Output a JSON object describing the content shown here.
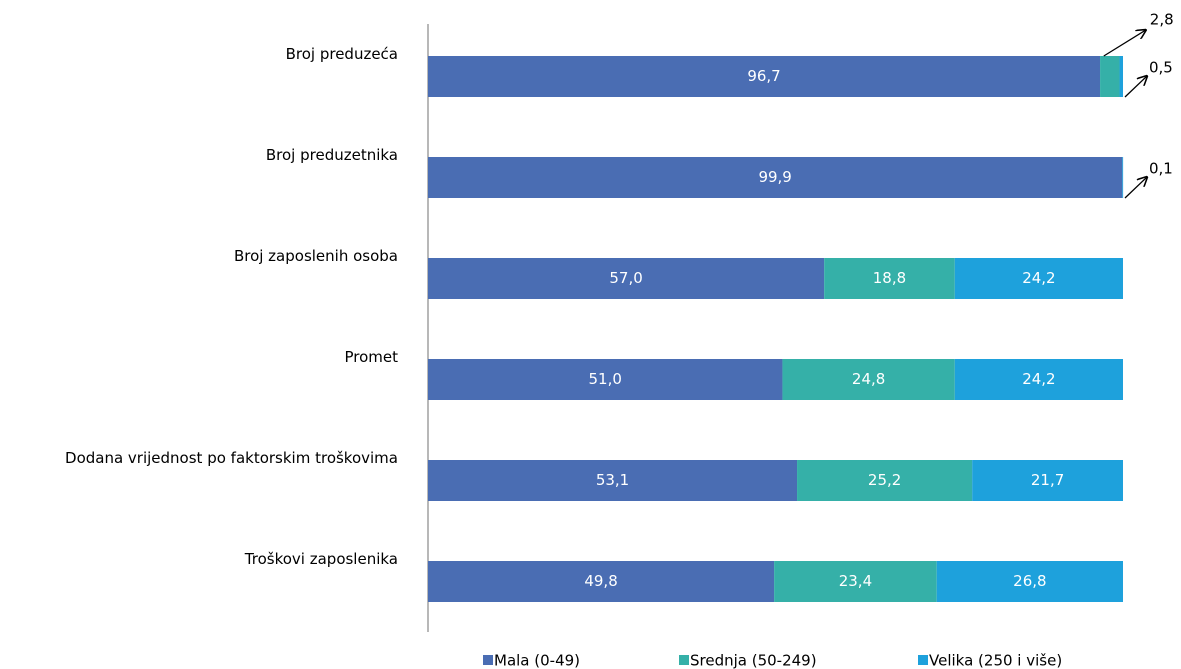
{
  "chart_data": {
    "type": "stacked-barh",
    "categories": [
      "Broj preduzeća",
      "Broj preduzetnika",
      "Broj zaposlenih osoba",
      "Promet",
      "Dodana vrijednost po faktorskim troškovima",
      "Troškovi zaposlenika"
    ],
    "series": [
      {
        "name": "Mala (0-49)",
        "color": "#4a6db3",
        "values": [
          96.7,
          99.9,
          57.0,
          51.0,
          53.1,
          49.8
        ],
        "value_labels": [
          "96,7",
          "99,9",
          "57,0",
          "51,0",
          "53,1",
          "49,8"
        ]
      },
      {
        "name": "Srednja (50-249)",
        "color": "#35b0a8",
        "values": [
          2.8,
          null,
          18.8,
          24.8,
          25.2,
          23.4
        ],
        "value_labels": [
          "2,8",
          null,
          "18,8",
          "24,8",
          "25,2",
          "23,4"
        ]
      },
      {
        "name": "Velika (250 i više)",
        "color": "#1ea1dc",
        "values": [
          0.5,
          0.1,
          24.2,
          24.2,
          21.7,
          26.8
        ],
        "value_labels": [
          "0,5",
          "0,1",
          "24,2",
          "24,2",
          "21,7",
          "26,8"
        ]
      }
    ],
    "xlim": [
      0,
      100
    ]
  }
}
